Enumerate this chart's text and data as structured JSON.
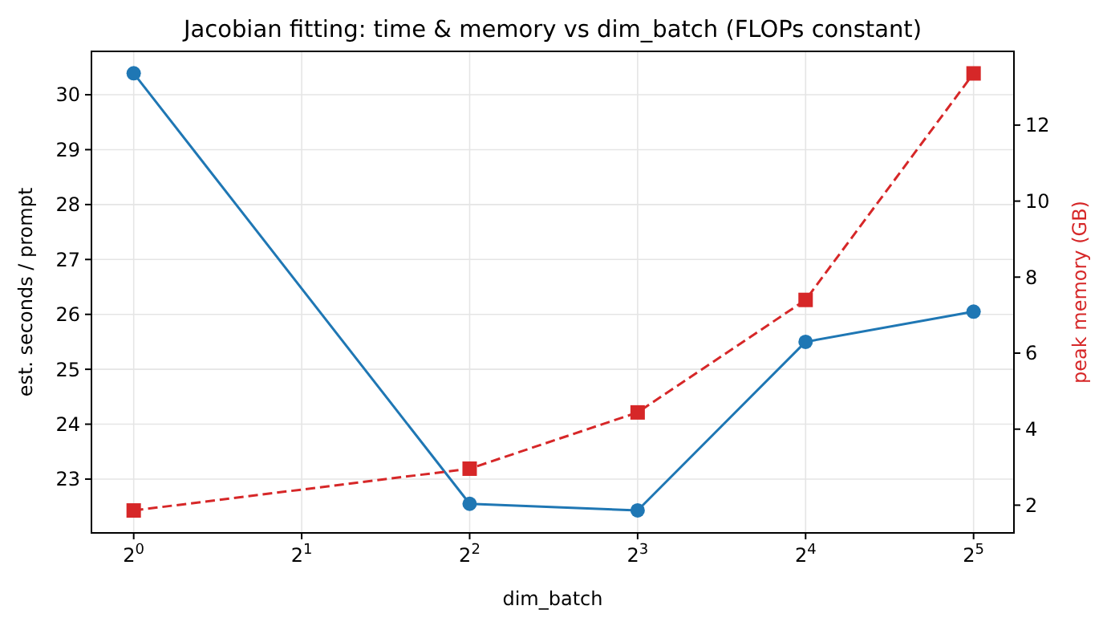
{
  "chart_data": {
    "type": "line",
    "title": "Jacobian fitting: time & memory vs dim_batch (FLOPs constant)",
    "xlabel": "dim_batch",
    "ylabel": "est. seconds / prompt",
    "y2label": "peak memory (GB)",
    "log": "x",
    "x": [
      1,
      4,
      8,
      16,
      32
    ],
    "xlim": [
      0.84,
      37.8
    ],
    "xticks": [
      {
        "value": 1,
        "label": "2$^{0}$"
      },
      {
        "value": 2,
        "label": "2$^{1}$"
      },
      {
        "value": 4,
        "label": "2$^{2}$"
      },
      {
        "value": 8,
        "label": "2$^{3}$"
      },
      {
        "value": 16,
        "label": "2$^{4}$"
      },
      {
        "value": 32,
        "label": "2$^{5}$"
      }
    ],
    "ylim": [
      22.02,
      30.79
    ],
    "yticks": [
      23,
      24,
      25,
      26,
      27,
      28,
      29,
      30
    ],
    "y2lim": [
      1.27,
      13.94
    ],
    "y2ticks": [
      2,
      4,
      6,
      8,
      10,
      12
    ],
    "grid": true,
    "series": [
      {
        "color": "#1f77b4",
        "values": [
          30.39,
          22.55,
          22.43,
          25.5,
          26.05
        ],
        "marker": "circle",
        "line_style": "solid"
      },
      {
        "color": "#d62728",
        "values": [
          1.86,
          2.96,
          4.44,
          7.4,
          13.36
        ],
        "marker": "square",
        "line_style": "dashed",
        "axis": "y2"
      }
    ]
  }
}
